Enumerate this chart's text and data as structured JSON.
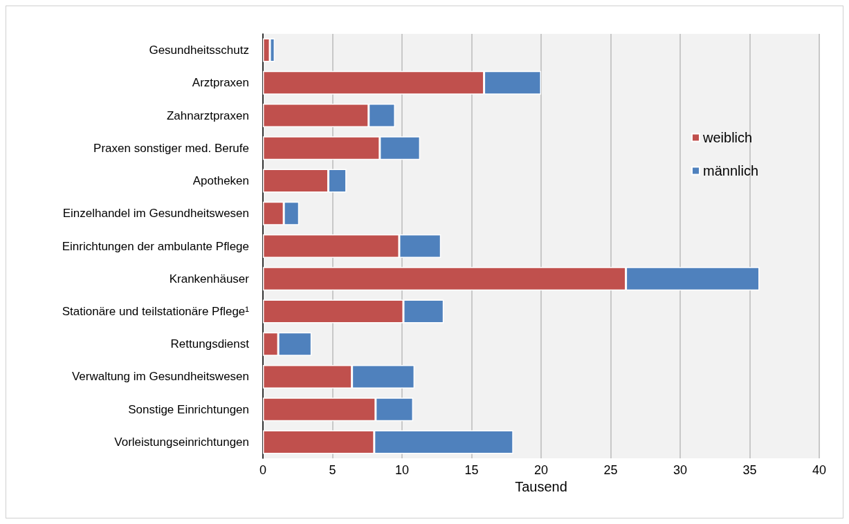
{
  "chart_data": {
    "type": "bar",
    "orientation": "horizontal",
    "stacked": true,
    "xlabel": "Tausend",
    "categories": [
      "Gesundheitsschutz",
      "Arztpraxen",
      "Zahnarztpraxen",
      "Praxen sonstiger med. Berufe",
      "Apotheken",
      "Einzelhandel im Gesundheitswesen",
      "Einrichtungen der ambulante Pflege",
      "Krankenhäuser",
      "Stationäre und teilstationäre Pflege¹",
      "Rettungsdienst",
      "Verwaltung im Gesundheitswesen",
      "Sonstige Einrichtungen",
      "Vorleistungseinrichtungen"
    ],
    "series": [
      {
        "name": "weiblich",
        "color": "#c0504d",
        "values": [
          0.5,
          15.9,
          7.6,
          8.4,
          4.7,
          1.5,
          9.8,
          26.1,
          10.1,
          1.1,
          6.4,
          8.1,
          8.0
        ]
      },
      {
        "name": "männlich",
        "color": "#4f81bd",
        "values": [
          0.35,
          4.1,
          1.9,
          2.9,
          1.3,
          1.1,
          3.0,
          9.6,
          2.9,
          2.4,
          4.5,
          2.7,
          10.0
        ]
      }
    ],
    "xlim": [
      0,
      40
    ],
    "xticks": [
      0,
      5,
      10,
      15,
      20,
      25,
      30,
      35,
      40
    ],
    "grid": "x",
    "legend": "top right"
  }
}
